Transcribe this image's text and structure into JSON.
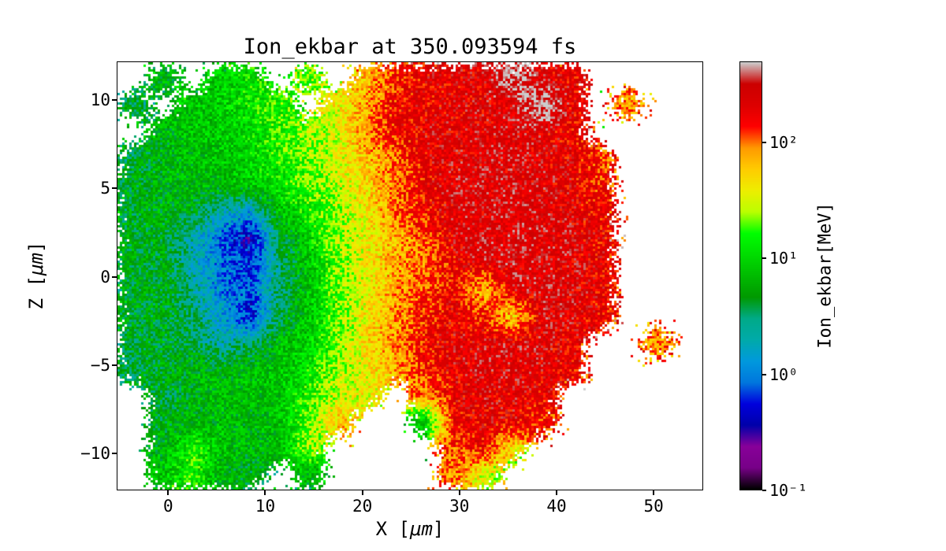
{
  "chart_data": {
    "type": "heatmap",
    "title": "Ion_ekbar at 350.093594 fs",
    "xlabel": {
      "pre": "X [",
      "unit": "μm",
      "post": "]"
    },
    "ylabel": {
      "pre": "Z [",
      "unit": "μm",
      "post": "]"
    },
    "colorbar_label": "Ion_ekbar[MeV]",
    "colormap": "nipy_spectral",
    "scale": "log",
    "units": "MeV",
    "vmin": 0.1,
    "vmax": 500,
    "xlim": [
      -5.3,
      55.1
    ],
    "zlim": [
      -12.1,
      12.2
    ],
    "x_ticks": [
      0,
      10,
      20,
      30,
      40,
      50
    ],
    "z_ticks": [
      -10,
      -5,
      0,
      5,
      10
    ],
    "colorbar_ticks": [
      {
        "value": 0.1,
        "label": "10⁻¹"
      },
      {
        "value": 1,
        "label": "10⁰"
      },
      {
        "value": 10,
        "label": "10¹"
      },
      {
        "value": 100,
        "label": "10²"
      }
    ],
    "grid": {
      "x0": -3.5,
      "dx": 3,
      "z0": 11.25,
      "dz": -1.5,
      "nx": 20,
      "nz": 16,
      "values": [
        [
          null,
          6,
          null,
          9,
          12,
          null,
          20,
          null,
          60,
          150,
          200,
          210,
          220,
          500,
          230,
          200,
          null,
          null,
          null,
          null
        ],
        [
          4,
          null,
          8,
          9,
          12,
          16,
          null,
          40,
          80,
          180,
          200,
          210,
          220,
          240,
          600,
          210,
          null,
          90,
          null,
          null
        ],
        [
          null,
          6,
          8,
          9,
          11,
          15,
          25,
          35,
          90,
          180,
          210,
          220,
          230,
          240,
          220,
          190,
          null,
          null,
          null,
          null
        ],
        [
          4,
          6,
          7,
          8,
          10,
          14,
          20,
          35,
          60,
          110,
          210,
          230,
          230,
          240,
          230,
          200,
          120,
          null,
          null,
          null
        ],
        [
          5,
          6,
          7,
          7,
          9,
          12,
          18,
          30,
          50,
          100,
          190,
          230,
          240,
          240,
          230,
          210,
          150,
          null,
          null,
          null
        ],
        [
          5,
          6,
          5,
          2,
          1.5,
          8,
          14,
          25,
          45,
          100,
          180,
          230,
          240,
          250,
          240,
          220,
          180,
          null,
          null,
          null
        ],
        [
          5,
          5,
          2,
          0.8,
          0.4,
          4,
          10,
          25,
          40,
          70,
          120,
          230,
          240,
          250,
          240,
          230,
          190,
          null,
          null,
          null
        ],
        [
          5,
          5,
          2,
          1,
          0.6,
          3,
          8,
          20,
          40,
          70,
          110,
          180,
          240,
          250,
          240,
          230,
          200,
          null,
          null,
          null
        ],
        [
          5,
          5,
          2.5,
          1,
          0.8,
          3,
          8,
          20,
          40,
          80,
          120,
          200,
          60,
          240,
          240,
          230,
          200,
          null,
          null,
          null
        ],
        [
          5,
          5,
          3,
          1.5,
          0.5,
          4,
          8,
          20,
          45,
          80,
          150,
          210,
          150,
          50,
          240,
          230,
          180,
          null,
          null,
          null
        ],
        [
          4,
          5,
          4,
          2,
          3,
          7,
          9,
          22,
          50,
          90,
          180,
          220,
          230,
          240,
          230,
          210,
          null,
          null,
          90,
          null
        ],
        [
          4,
          5,
          6,
          6,
          7,
          8,
          12,
          25,
          40,
          70,
          150,
          210,
          230,
          230,
          220,
          190,
          null,
          null,
          null,
          null
        ],
        [
          null,
          4,
          6,
          7,
          7,
          8,
          15,
          30,
          40,
          null,
          90,
          200,
          220,
          220,
          200,
          null,
          null,
          null,
          null,
          null
        ],
        [
          null,
          5,
          6,
          7,
          6,
          8,
          20,
          60,
          null,
          null,
          8,
          180,
          200,
          210,
          150,
          null,
          null,
          null,
          null,
          null
        ],
        [
          null,
          6,
          15,
          8,
          6,
          7,
          25,
          null,
          null,
          null,
          null,
          120,
          180,
          40,
          null,
          null,
          null,
          null,
          null,
          null
        ],
        [
          null,
          8,
          15,
          6,
          5,
          null,
          6,
          null,
          null,
          null,
          null,
          100,
          30,
          null,
          null,
          null,
          null,
          null,
          null,
          null
        ]
      ]
    }
  }
}
